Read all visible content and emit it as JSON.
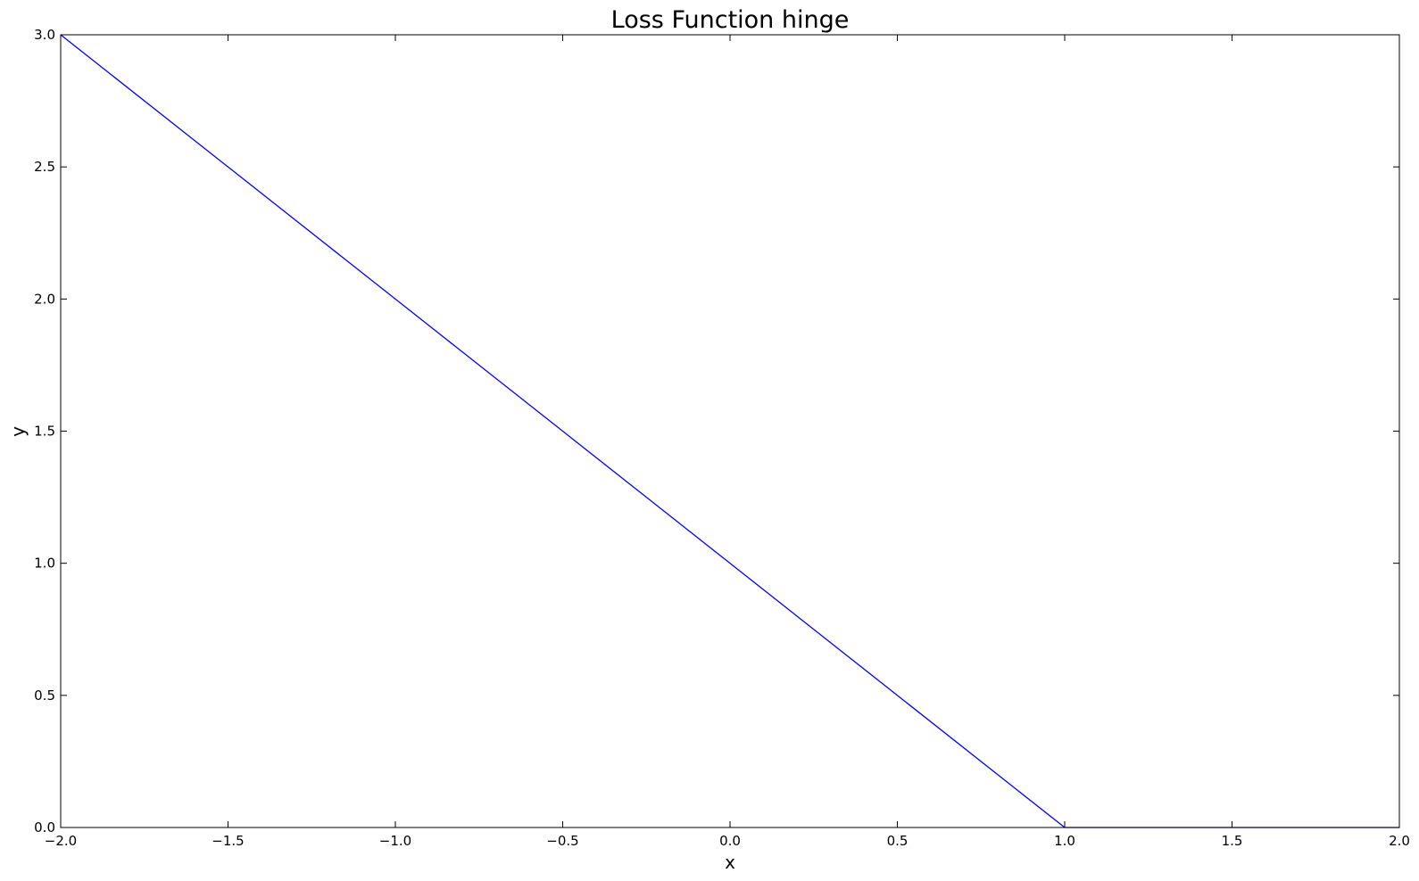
{
  "chart_data": {
    "type": "line",
    "title": "Loss Function hinge",
    "xlabel": "x",
    "ylabel": "y",
    "xlim": [
      -2.0,
      2.0
    ],
    "ylim": [
      0.0,
      3.0
    ],
    "xticks": [
      -2.0,
      -1.5,
      -1.0,
      -0.5,
      0.0,
      0.5,
      1.0,
      1.5,
      2.0
    ],
    "xtick_labels": [
      "−2.0",
      "−1.5",
      "−1.0",
      "−0.5",
      "0.0",
      "0.5",
      "1.0",
      "1.5",
      "2.0"
    ],
    "yticks": [
      0.0,
      0.5,
      1.0,
      1.5,
      2.0,
      2.5,
      3.0
    ],
    "ytick_labels": [
      "0.0",
      "0.5",
      "1.0",
      "1.5",
      "2.0",
      "2.5",
      "3.0"
    ],
    "grid": false,
    "series": [
      {
        "color": "#0000ff",
        "x": [
          -2.0,
          1.0,
          2.0
        ],
        "y": [
          3.0,
          0.0,
          0.0
        ]
      }
    ]
  }
}
